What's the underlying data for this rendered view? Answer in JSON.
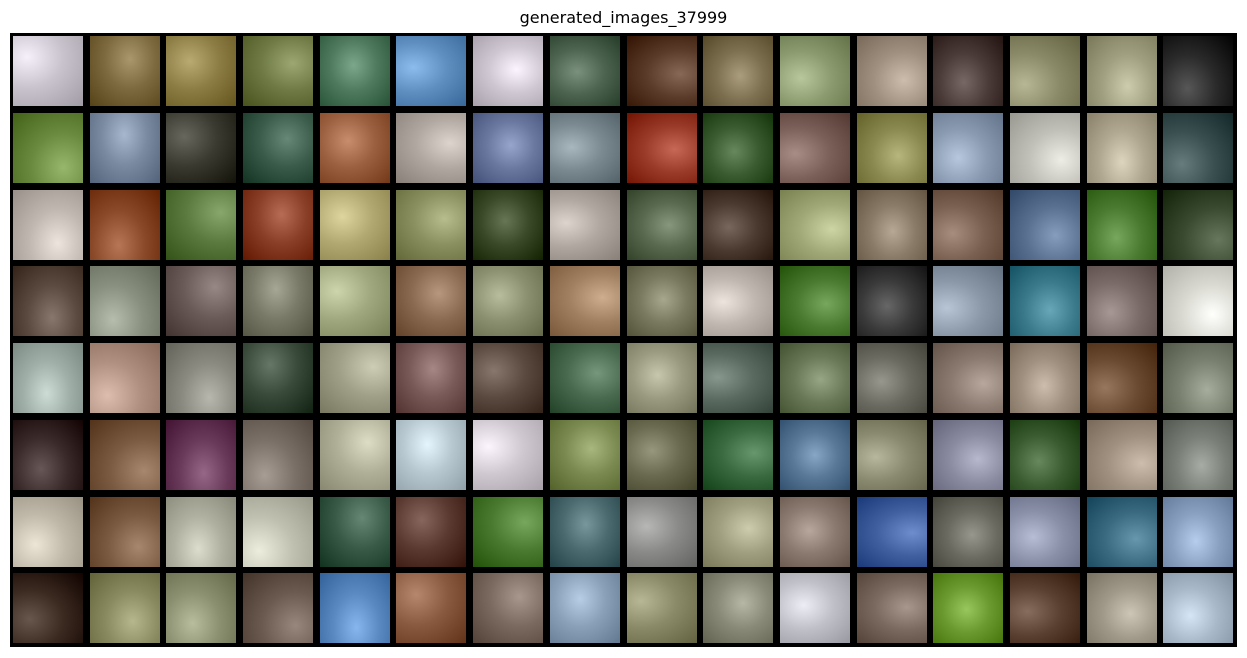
{
  "figure": {
    "title": "generated_images_37999"
  },
  "grid": {
    "rows": 8,
    "cols": 16,
    "tiles": [
      [
        "#c8c3cc",
        "#7d6a3e",
        "#8c7d45",
        "#6f7a45",
        "#4f7a5e",
        "#5f8fc0",
        "#cfc8d2",
        "#4d6450",
        "#5a3a28",
        "#7d7050",
        "#8c9a70",
        "#a09080",
        "#4a3a38",
        "#8a8a68",
        "#a0a080",
        "#2a2a2a"
      ],
      [
        "#6a8a40",
        "#7a8aa0",
        "#3a3a30",
        "#3a5a4a",
        "#9a6040",
        "#b0a8a0",
        "#6a78a0",
        "#7a8a90",
        "#9a3a28",
        "#3a5a30",
        "#7a6058",
        "#8a8a50",
        "#8a9ab0",
        "#c0c0b8",
        "#b0a890",
        "#3a5050"
      ],
      [
        "#c0b8b0",
        "#8a4a2a",
        "#5a7a40",
        "#8a4028",
        "#b0a870",
        "#8a9060",
        "#3a4a28",
        "#b0a8a0",
        "#5a6a50",
        "#4a3a30",
        "#a0a878",
        "#8a7a68",
        "#7a6050",
        "#5a7090",
        "#4a7a30",
        "#3a4a30"
      ],
      [
        "#5a4a40",
        "#8a9080",
        "#6a5a58",
        "#7a7a68",
        "#a0a880",
        "#8a6a50",
        "#8a9070",
        "#a08060",
        "#7a7a60",
        "#c0b8b0",
        "#4a7a30",
        "#3a3a3a",
        "#8a98a8",
        "#3a7a8a",
        "#7a6a68",
        "#d8d8d0"
      ],
      [
        "#a0b0a8",
        "#b09080",
        "#8a8a80",
        "#3a4a3a",
        "#a0a088",
        "#7a5a58",
        "#5a4a40",
        "#4a6a50",
        "#9a9a80",
        "#5a6a60",
        "#6a7a58",
        "#6a6a60",
        "#8a7a70",
        "#a09080",
        "#6a4a30",
        "#7a8070"
      ],
      [
        "#3a2a2a",
        "#7a5a40",
        "#6a3a5a",
        "#7a7068",
        "#b0b098",
        "#b8c8d0",
        "#d0c8d0",
        "#7a8a50",
        "#6a6a50",
        "#3a6a40",
        "#5a7898",
        "#8a8a70",
        "#8a8aa0",
        "#3a5a30",
        "#a09080",
        "#7a8078"
      ],
      [
        "#c0b8a8",
        "#7a5a40",
        "#b0b0a0",
        "#c0c0b0",
        "#3a5a48",
        "#5a3a30",
        "#4a7a30",
        "#4a6a70",
        "#8a8a88",
        "#a0a080",
        "#8a7a70",
        "#4060a0",
        "#6a6a60",
        "#8a90a8",
        "#3a6a80",
        "#8aa0c0"
      ],
      [
        "#3a2a20",
        "#8a8a60",
        "#8a9070",
        "#6a5a50",
        "#5a88c0",
        "#8a5a40",
        "#7a6a60",
        "#8aa0b8",
        "#8a8a68",
        "#8a8a78",
        "#c0c0c8",
        "#7a6a60",
        "#6a9a30",
        "#5a4030",
        "#a09888",
        "#a8b8c8"
      ]
    ]
  }
}
